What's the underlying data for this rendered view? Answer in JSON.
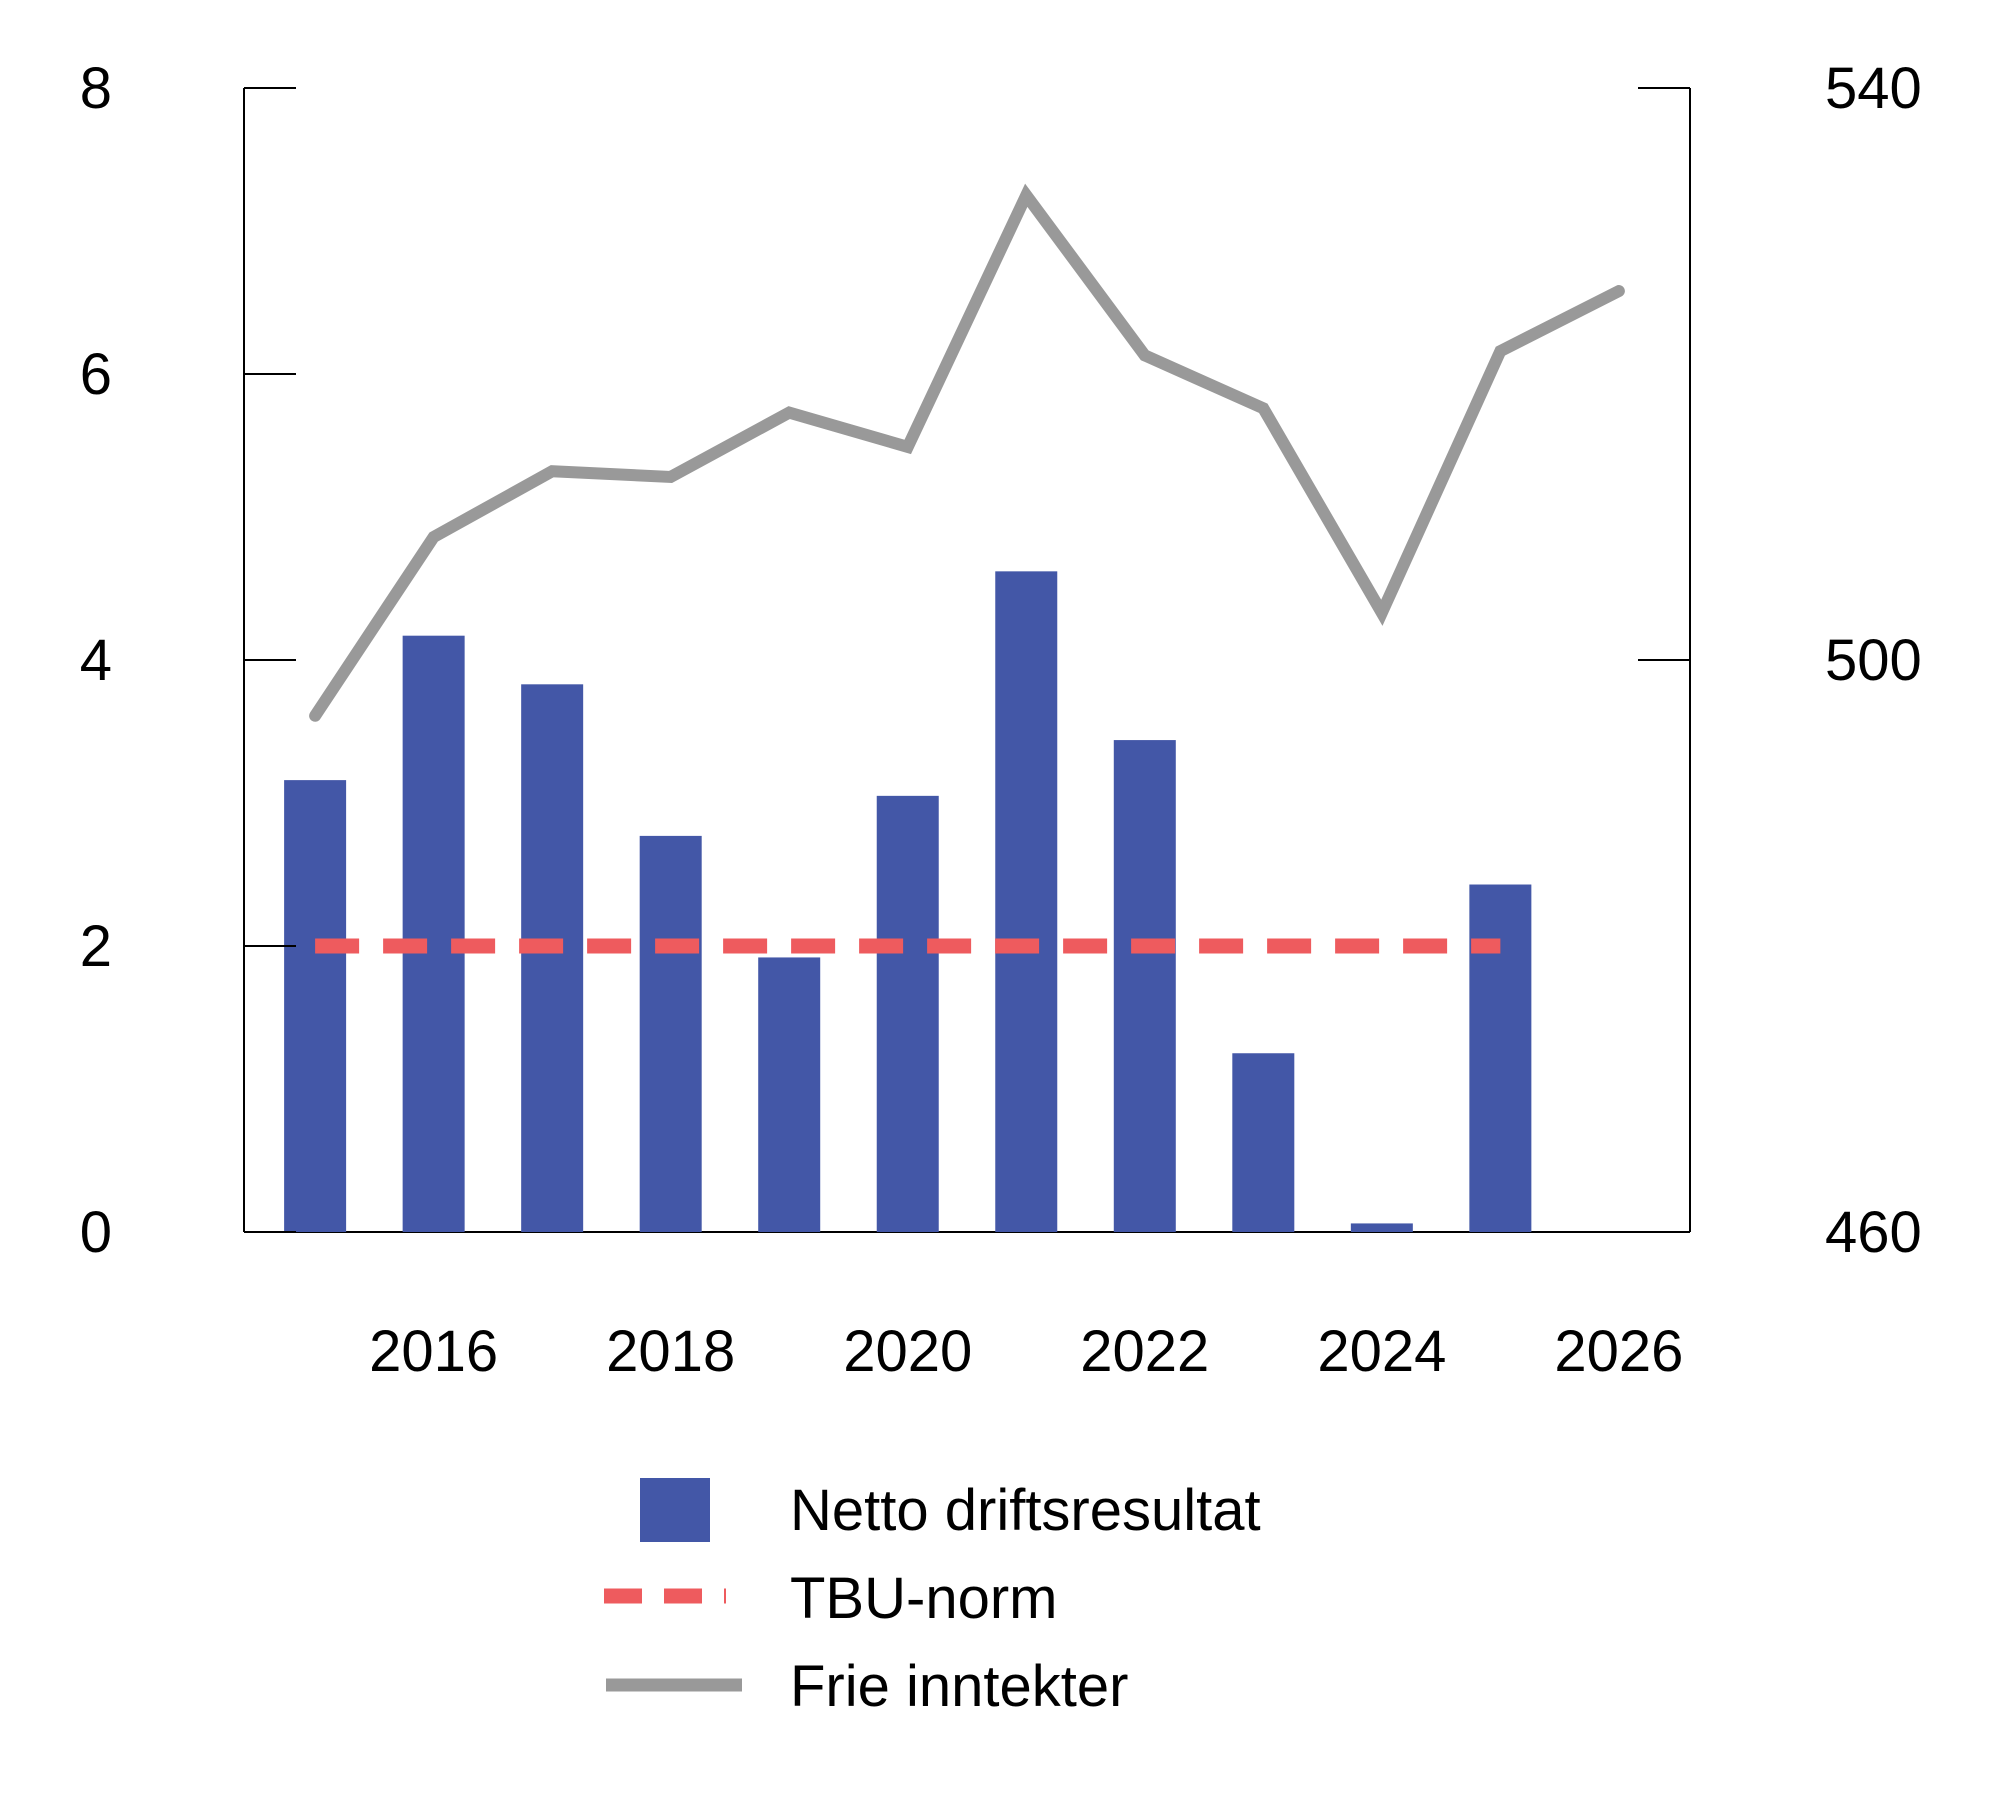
{
  "chart_data": {
    "type": "bar",
    "title": "",
    "grid": false,
    "legend_position": "bottom",
    "x_ticks": [
      "2016",
      "2018",
      "2020",
      "2022",
      "2024",
      "2026"
    ],
    "x_range": [
      2014.4,
      2026.6
    ],
    "y_left": {
      "ticks": [
        "0",
        "2",
        "4",
        "6",
        "8"
      ],
      "range": [
        0,
        8
      ]
    },
    "y_right": {
      "ticks": [
        "460",
        "500",
        "540"
      ],
      "range": [
        460,
        540
      ]
    },
    "series": [
      {
        "name": "Netto driftsresultat",
        "kind": "bar",
        "axis": "left",
        "color": "#4357a7",
        "x": [
          2015,
          2016,
          2017,
          2018,
          2019,
          2020,
          2021,
          2022,
          2023,
          2024,
          2025
        ],
        "values": [
          3.16,
          4.17,
          3.83,
          2.77,
          1.92,
          3.05,
          4.62,
          3.44,
          1.25,
          0.06,
          2.43
        ]
      },
      {
        "name": "TBU-norm",
        "kind": "line-dashed",
        "axis": "left",
        "color": "#ee5b5e",
        "x": [
          2015,
          2025
        ],
        "values": [
          2.0,
          2.0
        ]
      },
      {
        "name": "Frie inntekter",
        "kind": "line",
        "axis": "right",
        "color": "#999999",
        "x": [
          2015,
          2016,
          2017,
          2018,
          2019,
          2020,
          2021,
          2022,
          2023,
          2024,
          2025,
          2026
        ],
        "values": [
          496.1,
          508.6,
          513.2,
          512.8,
          517.3,
          514.9,
          532.5,
          521.3,
          517.6,
          503.3,
          521.6,
          525.8
        ]
      }
    ]
  }
}
